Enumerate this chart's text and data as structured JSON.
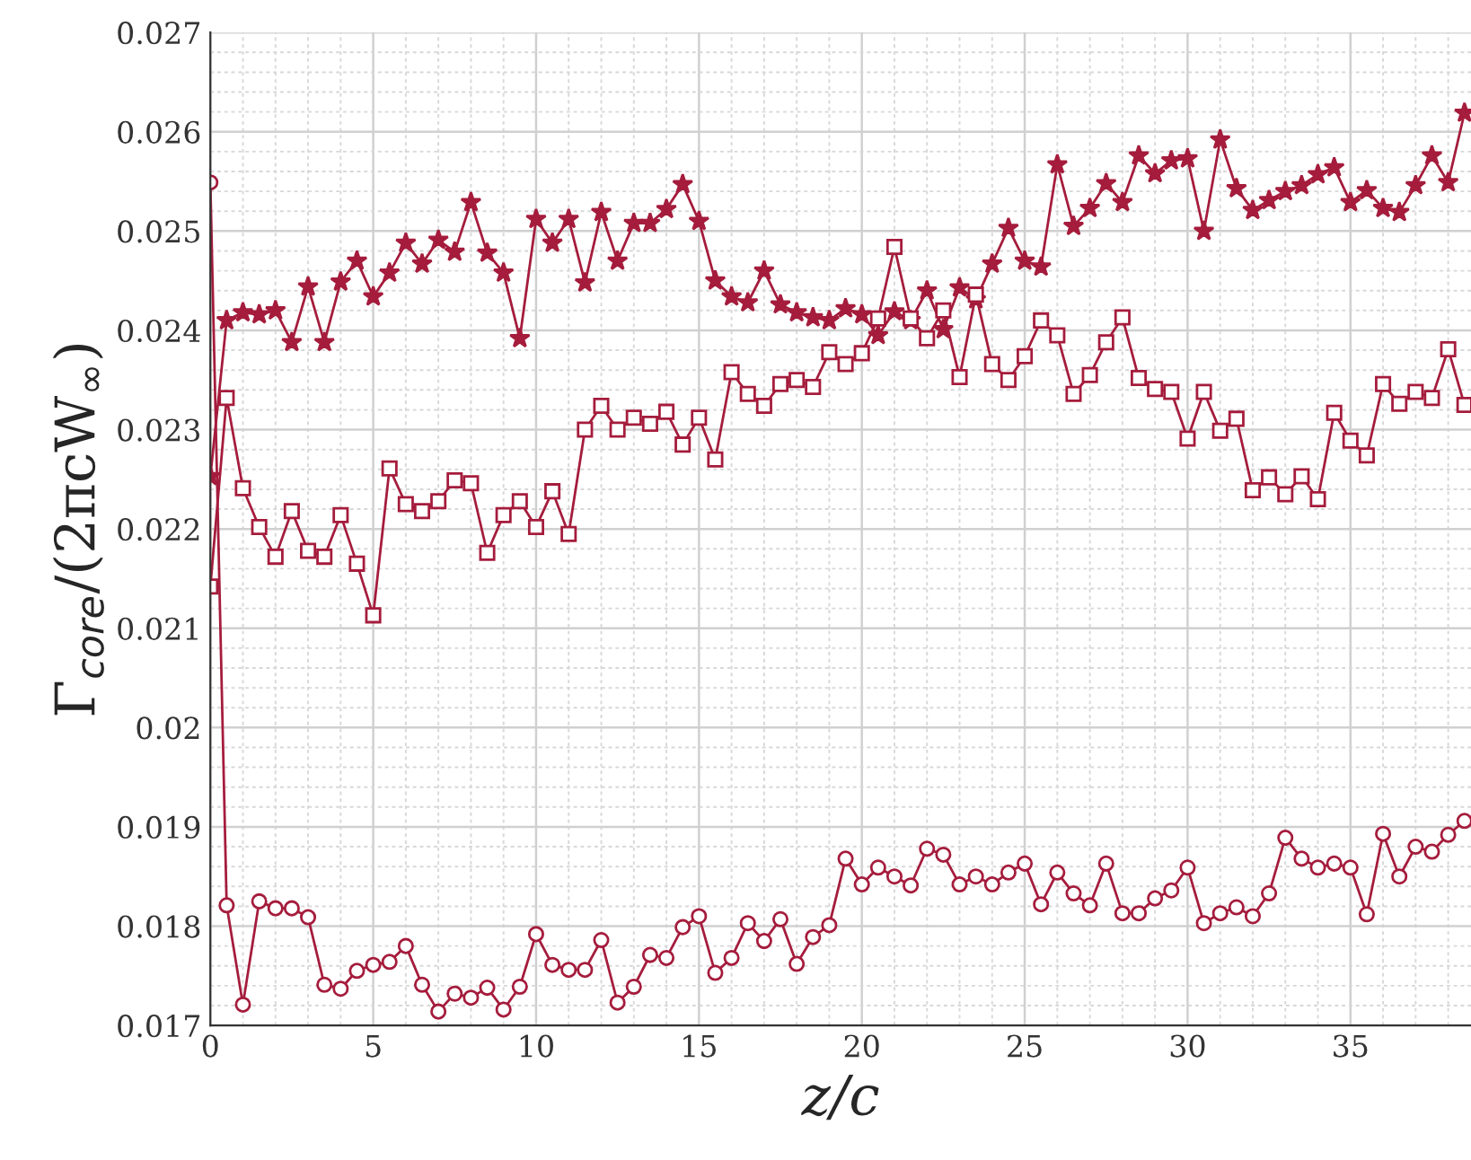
{
  "chart_data": {
    "type": "line",
    "xlabel": "z/c",
    "ylabel": "Γ$_{core}$/(2πcW$_{∞}$)",
    "x": [
      0,
      0.5,
      1,
      1.5,
      2,
      2.5,
      3,
      3.5,
      4,
      4.5,
      5,
      5.5,
      6,
      6.5,
      7,
      7.5,
      8,
      8.5,
      9,
      9.5,
      10,
      10.5,
      11,
      11.5,
      12,
      12.5,
      13,
      13.5,
      14,
      14.5,
      15,
      15.5,
      16,
      16.5,
      17,
      17.5,
      18,
      18.5,
      19,
      19.5,
      20,
      20.5,
      21,
      21.5,
      22,
      22.5,
      23,
      23.5,
      24,
      24.5,
      25,
      25.5,
      26,
      26.5,
      27,
      27.5,
      28,
      28.5,
      29,
      29.5,
      30,
      30.5,
      31,
      31.5,
      32,
      32.5,
      33,
      33.5,
      34,
      34.5,
      35,
      35.5,
      36,
      36.5,
      37,
      37.5,
      38,
      38.5
    ],
    "series": [
      {
        "color": "#a51c3c",
        "marker": "star",
        "values": [
          0.02253,
          0.0241,
          0.02418,
          0.02416,
          0.0242,
          0.02388,
          0.02444,
          0.02388,
          0.02449,
          0.0247,
          0.02434,
          0.02458,
          0.02488,
          0.02467,
          0.02491,
          0.02479,
          0.02529,
          0.02478,
          0.02458,
          0.02392,
          0.02512,
          0.02488,
          0.02512,
          0.02448,
          0.02519,
          0.0247,
          0.02508,
          0.02508,
          0.02522,
          0.02547,
          0.0251,
          0.0245,
          0.02434,
          0.02428,
          0.0246,
          0.02426,
          0.02418,
          0.02413,
          0.0241,
          0.02422,
          0.02416,
          0.02395,
          0.02419,
          0.0241,
          0.0244,
          0.02401,
          0.02443,
          0.02431,
          0.02467,
          0.02503,
          0.0247,
          0.02464,
          0.02567,
          0.02505,
          0.02523,
          0.02548,
          0.02529,
          0.02576,
          0.02558,
          0.02571,
          0.02573,
          0.025,
          0.02592,
          0.02543,
          0.02521,
          0.02531,
          0.0254,
          0.02546,
          0.02557,
          0.02564,
          0.02529,
          0.02541,
          0.02523,
          0.02519,
          0.02546,
          0.02576,
          0.02549,
          0.02619
        ]
      },
      {
        "color": "#a51c3c",
        "marker": "square",
        "values": [
          0.02142,
          0.02332,
          0.02241,
          0.02202,
          0.02172,
          0.02218,
          0.02178,
          0.02172,
          0.02214,
          0.02165,
          0.02113,
          0.02261,
          0.02225,
          0.02218,
          0.02228,
          0.02249,
          0.02246,
          0.02176,
          0.02214,
          0.02228,
          0.02202,
          0.02238,
          0.02195,
          0.023,
          0.02324,
          0.023,
          0.02312,
          0.02306,
          0.02318,
          0.02285,
          0.02312,
          0.0227,
          0.02358,
          0.02336,
          0.02324,
          0.02346,
          0.0235,
          0.02343,
          0.02378,
          0.02366,
          0.02377,
          0.02412,
          0.02484,
          0.02412,
          0.02392,
          0.0242,
          0.02353,
          0.02436,
          0.02366,
          0.0235,
          0.02374,
          0.0241,
          0.02395,
          0.02336,
          0.02355,
          0.02388,
          0.02413,
          0.02352,
          0.02341,
          0.02338,
          0.02291,
          0.02338,
          0.02299,
          0.02311,
          0.02239,
          0.02252,
          0.02235,
          0.02253,
          0.0223,
          0.02317,
          0.02289,
          0.02274,
          0.02346,
          0.02326,
          0.02338,
          0.02332,
          0.02381,
          0.02325
        ]
      },
      {
        "color": "#a51c3c",
        "marker": "circle",
        "values": [
          0.02549,
          0.01821,
          0.01721,
          0.01825,
          0.01818,
          0.01818,
          0.01809,
          0.01741,
          0.01737,
          0.01755,
          0.01761,
          0.01764,
          0.0178,
          0.01741,
          0.01714,
          0.01732,
          0.01728,
          0.01738,
          0.01716,
          0.01739,
          0.01792,
          0.01761,
          0.01756,
          0.01756,
          0.01786,
          0.01723,
          0.01739,
          0.01771,
          0.01768,
          0.01799,
          0.0181,
          0.01753,
          0.01768,
          0.01803,
          0.01785,
          0.01807,
          0.01762,
          0.01789,
          0.01801,
          0.01868,
          0.01842,
          0.01859,
          0.0185,
          0.01841,
          0.01878,
          0.01872,
          0.01842,
          0.0185,
          0.01842,
          0.01854,
          0.01863,
          0.01822,
          0.01854,
          0.01833,
          0.01821,
          0.01863,
          0.01813,
          0.01813,
          0.01828,
          0.01836,
          0.01859,
          0.01803,
          0.01813,
          0.01819,
          0.0181,
          0.01833,
          0.01889,
          0.01868,
          0.01859,
          0.01863,
          0.01859,
          0.01812,
          0.01893,
          0.0185,
          0.0188,
          0.01875,
          0.01892,
          0.01906
        ]
      }
    ],
    "xlim": [
      0,
      38.7
    ],
    "ylim": [
      0.017,
      0.027
    ],
    "xticks": [
      0,
      5,
      10,
      15,
      20,
      25,
      30,
      35
    ],
    "yticks": [
      0.017,
      0.018,
      0.019,
      0.02,
      0.021,
      0.022,
      0.023,
      0.024,
      0.025,
      0.026,
      0.027
    ],
    "grid": true
  }
}
